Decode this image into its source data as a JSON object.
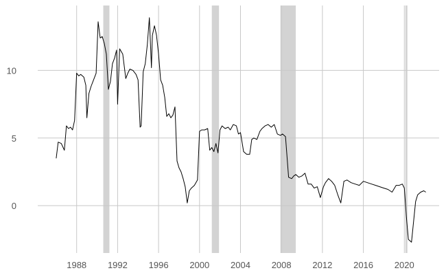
{
  "chart_data": {
    "type": "line",
    "title": "",
    "xlabel": "",
    "ylabel": "",
    "xlim": [
      1984.2,
      2023.4
    ],
    "ylim": [
      -3.5,
      14.8
    ],
    "x_ticks": [
      1988,
      1992,
      1996,
      2000,
      2004,
      2008,
      2012,
      2016,
      2020
    ],
    "x_tick_labels": [
      "1988",
      "1992",
      "1996",
      "2000",
      "2004",
      "2008",
      "2012",
      "2016",
      "2020"
    ],
    "y_ticks": [
      0,
      5,
      10
    ],
    "y_tick_labels": [
      "0",
      "5",
      "10"
    ],
    "grid": true,
    "legend": "none",
    "line_color": "#000000",
    "shade_color": "#d3d3d3",
    "recessions": [
      [
        1990.6,
        1991.2
      ],
      [
        2001.2,
        2001.9
      ],
      [
        2007.9,
        2009.4
      ],
      [
        2020.1,
        2020.3
      ]
    ],
    "series": [
      {
        "x": [
          1986.0,
          1986.2,
          1986.5,
          1986.8,
          1987.0,
          1987.2,
          1987.4,
          1987.6,
          1987.8,
          1988.0,
          1988.2,
          1988.4,
          1988.7,
          1988.9,
          1989.0,
          1989.2,
          1989.4,
          1989.6,
          1989.9,
          1990.1,
          1990.3,
          1990.5,
          1990.7,
          1990.9,
          1991.1,
          1991.3,
          1991.5,
          1991.7,
          1991.9,
          1992.0,
          1992.2,
          1992.5,
          1992.8,
          1993.0,
          1993.2,
          1993.5,
          1993.8,
          1994.0,
          1994.2,
          1994.3,
          1994.5,
          1994.7,
          1994.9,
          1995.1,
          1995.3,
          1995.4,
          1995.6,
          1995.8,
          1996.0,
          1996.2,
          1996.4,
          1996.6,
          1996.8,
          1997.0,
          1997.2,
          1997.4,
          1997.6,
          1997.8,
          1998.0,
          1998.2,
          1998.4,
          1998.6,
          1998.8,
          1999.0,
          1999.2,
          1999.5,
          1999.8,
          2000.0,
          2000.2,
          2000.5,
          2000.8,
          2001.0,
          2001.2,
          2001.4,
          2001.6,
          2001.8,
          2002.0,
          2002.2,
          2002.5,
          2002.8,
          2003.0,
          2003.3,
          2003.6,
          2003.8,
          2004.0,
          2004.3,
          2004.6,
          2004.9,
          2005.1,
          2005.3,
          2005.6,
          2005.9,
          2006.1,
          2006.4,
          2006.7,
          2007.0,
          2007.3,
          2007.6,
          2007.9,
          2008.1,
          2008.4,
          2008.7,
          2009.0,
          2009.2,
          2009.4,
          2009.7,
          2010.0,
          2010.3,
          2010.6,
          2010.9,
          2011.2,
          2011.5,
          2011.8,
          2012.1,
          2012.3,
          2012.6,
          2012.9,
          2013.2,
          2013.5,
          2013.8,
          2014.1,
          2014.4,
          2014.8,
          2015.2,
          2015.6,
          2016.0,
          2016.4,
          2016.8,
          2017.2,
          2017.6,
          2018.0,
          2018.4,
          2018.8,
          2019.2,
          2019.5,
          2019.8,
          2020.0,
          2020.2,
          2020.4,
          2020.7,
          2020.9,
          2021.1,
          2021.3,
          2021.6,
          2021.9,
          2022.1
        ],
        "y": [
          3.5,
          4.7,
          4.6,
          4.1,
          5.9,
          5.7,
          5.8,
          5.6,
          6.3,
          9.8,
          9.6,
          9.7,
          9.5,
          8.9,
          6.5,
          8.3,
          8.8,
          9.2,
          9.8,
          13.6,
          12.4,
          12.5,
          12.0,
          11.2,
          8.6,
          9.2,
          10.5,
          10.9,
          11.5,
          7.5,
          11.6,
          11.2,
          9.4,
          9.8,
          10.1,
          10.0,
          9.7,
          9.3,
          5.8,
          5.9,
          9.9,
          10.5,
          11.9,
          13.9,
          10.2,
          12.6,
          13.3,
          12.6,
          11.2,
          9.3,
          8.9,
          8.0,
          6.6,
          6.8,
          6.5,
          6.7,
          7.3,
          3.3,
          2.8,
          2.5,
          2.0,
          1.4,
          0.2,
          1.1,
          1.3,
          1.5,
          1.9,
          5.5,
          5.6,
          5.6,
          5.7,
          4.1,
          4.3,
          4.0,
          4.6,
          3.9,
          5.6,
          5.9,
          5.7,
          5.8,
          5.6,
          6.0,
          5.9,
          5.3,
          5.4,
          4.0,
          3.8,
          3.8,
          4.9,
          5.0,
          4.9,
          5.5,
          5.7,
          5.9,
          6.0,
          5.8,
          6.0,
          5.3,
          5.2,
          5.3,
          5.1,
          2.1,
          2.0,
          2.2,
          2.3,
          2.1,
          2.2,
          2.4,
          1.6,
          1.6,
          1.3,
          1.4,
          0.6,
          1.4,
          1.7,
          2.0,
          1.8,
          1.5,
          0.8,
          0.2,
          1.8,
          1.9,
          1.7,
          1.6,
          1.5,
          1.8,
          1.7,
          1.6,
          1.5,
          1.4,
          1.3,
          1.2,
          1.0,
          1.5,
          1.5,
          1.6,
          1.3,
          -0.8,
          -2.5,
          -2.7,
          -1.2,
          0.3,
          0.8,
          1.0,
          1.1,
          1.0
        ]
      }
    ]
  }
}
